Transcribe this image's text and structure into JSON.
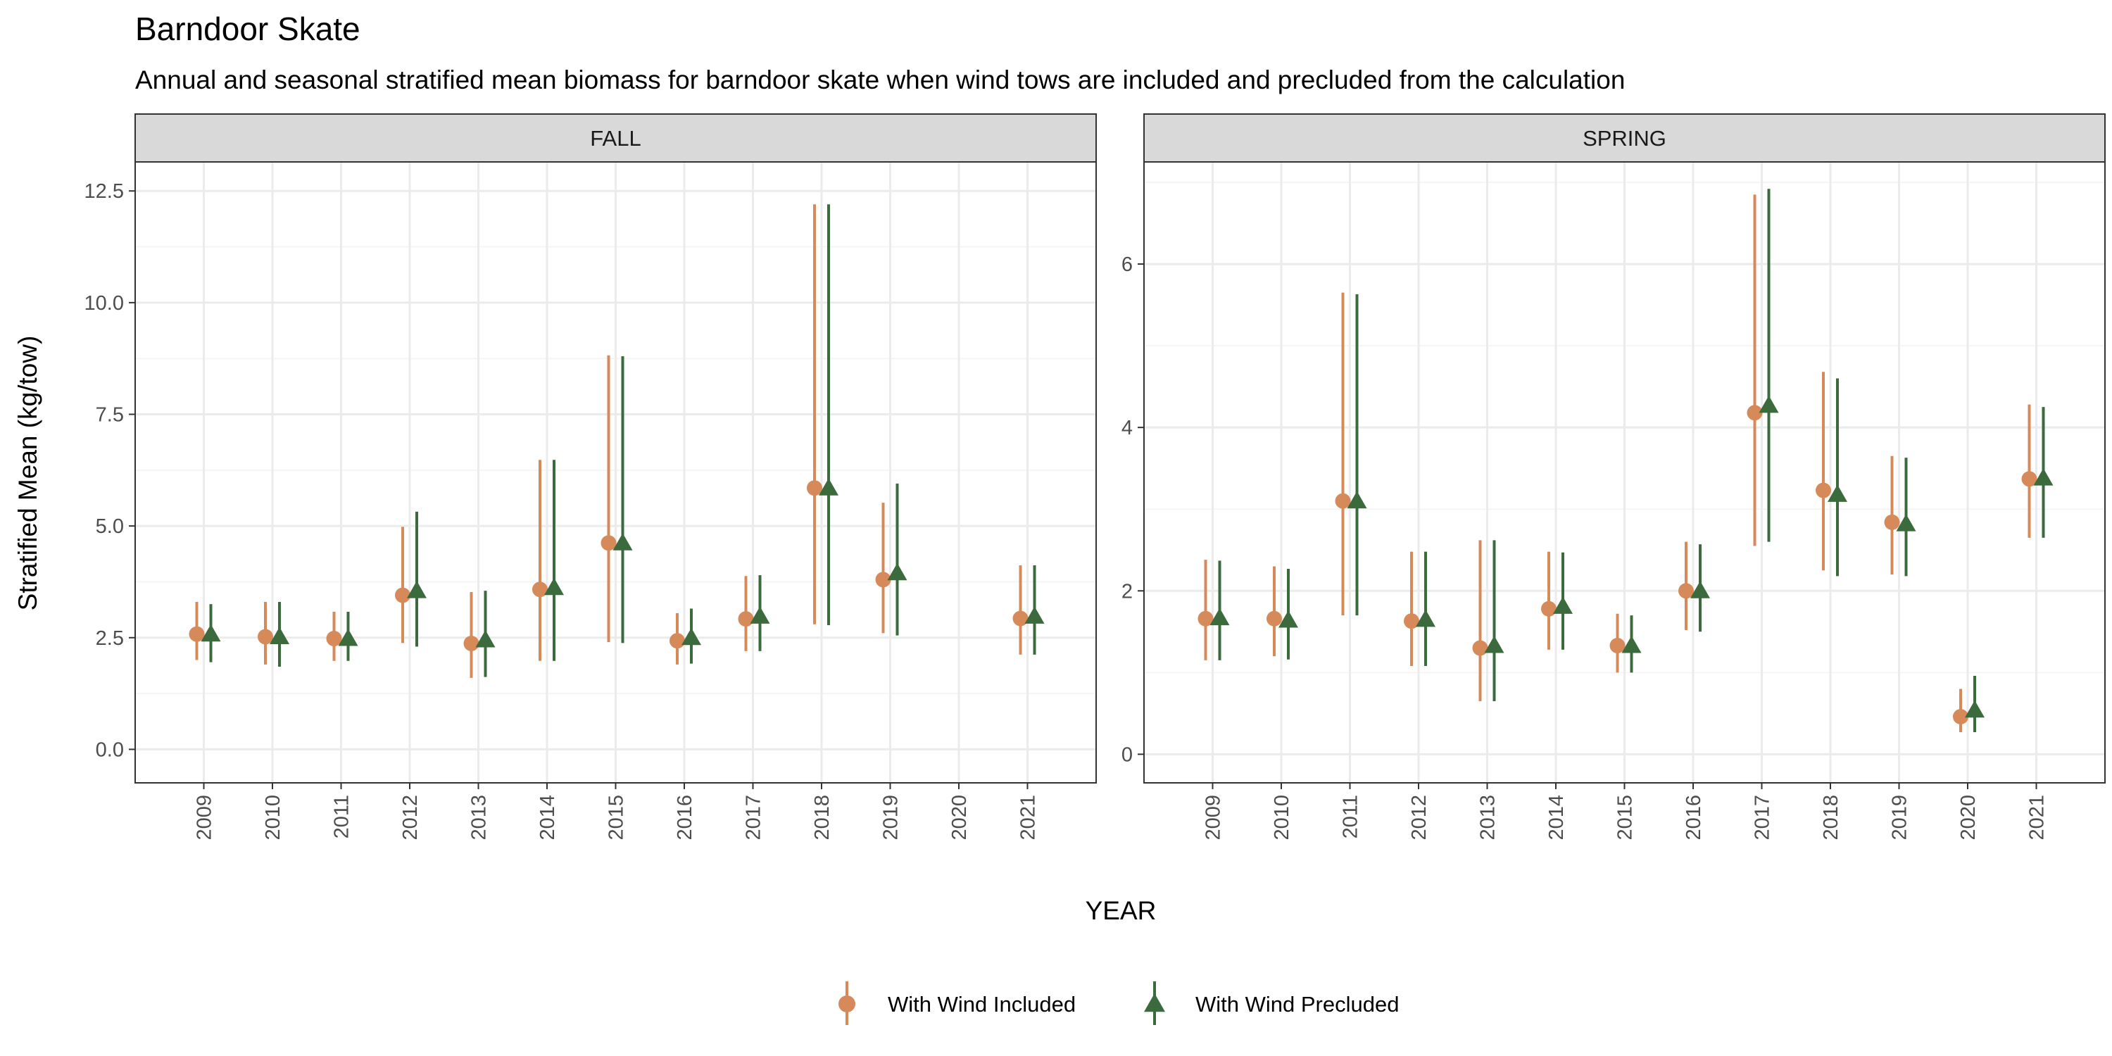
{
  "title": "Barndoor Skate",
  "subtitle": "Annual and seasonal stratified mean biomass for barndoor skate when wind tows are included and precluded from the calculation",
  "colors": {
    "included": "#D68A59",
    "precluded": "#3B6B3D",
    "strip_fill": "#D9D9D9",
    "grid_major": "#EBEBEB",
    "panel_border": "#333333"
  },
  "chart_data": {
    "type": "scatter",
    "xlabel": "YEAR",
    "ylabel": "Stratified Mean (kg/tow)",
    "legend_position": "bottom",
    "grid": true,
    "legend": [
      {
        "key": "included",
        "label": "With Wind Included",
        "shape": "circle",
        "color": "#D68A59"
      },
      {
        "key": "precluded",
        "label": "With Wind Precluded",
        "shape": "triangle",
        "color": "#3B6B3D"
      }
    ],
    "panels": [
      {
        "label": "FALL",
        "ylim": [
          -0.75,
          13.15
        ],
        "yticks": [
          0,
          2.5,
          5,
          7.5,
          10,
          12.5
        ],
        "ytick_labels": [
          "0.0",
          "2.5",
          "5.0",
          "7.5",
          "10.0",
          "12.5"
        ],
        "years": [
          "2009",
          "2010",
          "2011",
          "2012",
          "2013",
          "2014",
          "2015",
          "2016",
          "2017",
          "2018",
          "2019",
          "2020",
          "2021"
        ],
        "series": [
          {
            "key": "included",
            "mean": [
              2.58,
              2.52,
              2.48,
              3.45,
              2.37,
              3.58,
              4.62,
              2.43,
              2.92,
              5.85,
              3.8,
              null,
              2.93
            ],
            "lower": [
              2.0,
              1.9,
              1.98,
              2.38,
              1.6,
              1.98,
              2.4,
              1.9,
              2.2,
              2.8,
              2.6,
              null,
              2.12
            ],
            "upper": [
              3.3,
              3.3,
              3.08,
              4.98,
              3.52,
              6.48,
              8.82,
              3.05,
              3.88,
              12.2,
              5.52,
              null,
              4.12
            ]
          },
          {
            "key": "precluded",
            "mean": [
              2.58,
              2.52,
              2.48,
              3.55,
              2.45,
              3.62,
              4.62,
              2.5,
              2.98,
              5.85,
              3.95,
              null,
              2.98
            ],
            "lower": [
              1.95,
              1.85,
              1.98,
              2.3,
              1.62,
              1.98,
              2.38,
              1.92,
              2.2,
              2.78,
              2.55,
              null,
              2.12
            ],
            "upper": [
              3.25,
              3.3,
              3.08,
              5.32,
              3.55,
              6.48,
              8.8,
              3.15,
              3.9,
              12.2,
              5.95,
              null,
              4.12
            ]
          }
        ]
      },
      {
        "label": "SPRING",
        "ylim": [
          -0.35,
          7.25
        ],
        "yticks": [
          0,
          2,
          4,
          6
        ],
        "ytick_labels": [
          "0",
          "2",
          "4",
          "6"
        ],
        "years": [
          "2009",
          "2010",
          "2011",
          "2012",
          "2013",
          "2014",
          "2015",
          "2016",
          "2017",
          "2018",
          "2019",
          "2020",
          "2021"
        ],
        "series": [
          {
            "key": "included",
            "mean": [
              1.66,
              1.66,
              3.1,
              1.63,
              1.3,
              1.78,
              1.33,
              2.0,
              4.18,
              3.23,
              2.84,
              0.46,
              3.37
            ],
            "lower": [
              1.15,
              1.2,
              1.7,
              1.08,
              0.65,
              1.28,
              1.0,
              1.52,
              2.55,
              2.25,
              2.2,
              0.27,
              2.65
            ],
            "upper": [
              2.38,
              2.3,
              5.65,
              2.48,
              2.62,
              2.48,
              1.72,
              2.6,
              6.85,
              4.68,
              3.65,
              0.8,
              4.28
            ]
          },
          {
            "key": "precluded",
            "mean": [
              1.67,
              1.64,
              3.1,
              1.65,
              1.33,
              1.81,
              1.33,
              2.0,
              4.27,
              3.18,
              2.82,
              0.54,
              3.38
            ],
            "lower": [
              1.15,
              1.16,
              1.7,
              1.08,
              0.65,
              1.28,
              1.0,
              1.5,
              2.6,
              2.18,
              2.18,
              0.27,
              2.65
            ],
            "upper": [
              2.37,
              2.27,
              5.63,
              2.48,
              2.62,
              2.47,
              1.7,
              2.57,
              6.92,
              4.6,
              3.63,
              0.96,
              4.25
            ]
          }
        ]
      }
    ]
  }
}
